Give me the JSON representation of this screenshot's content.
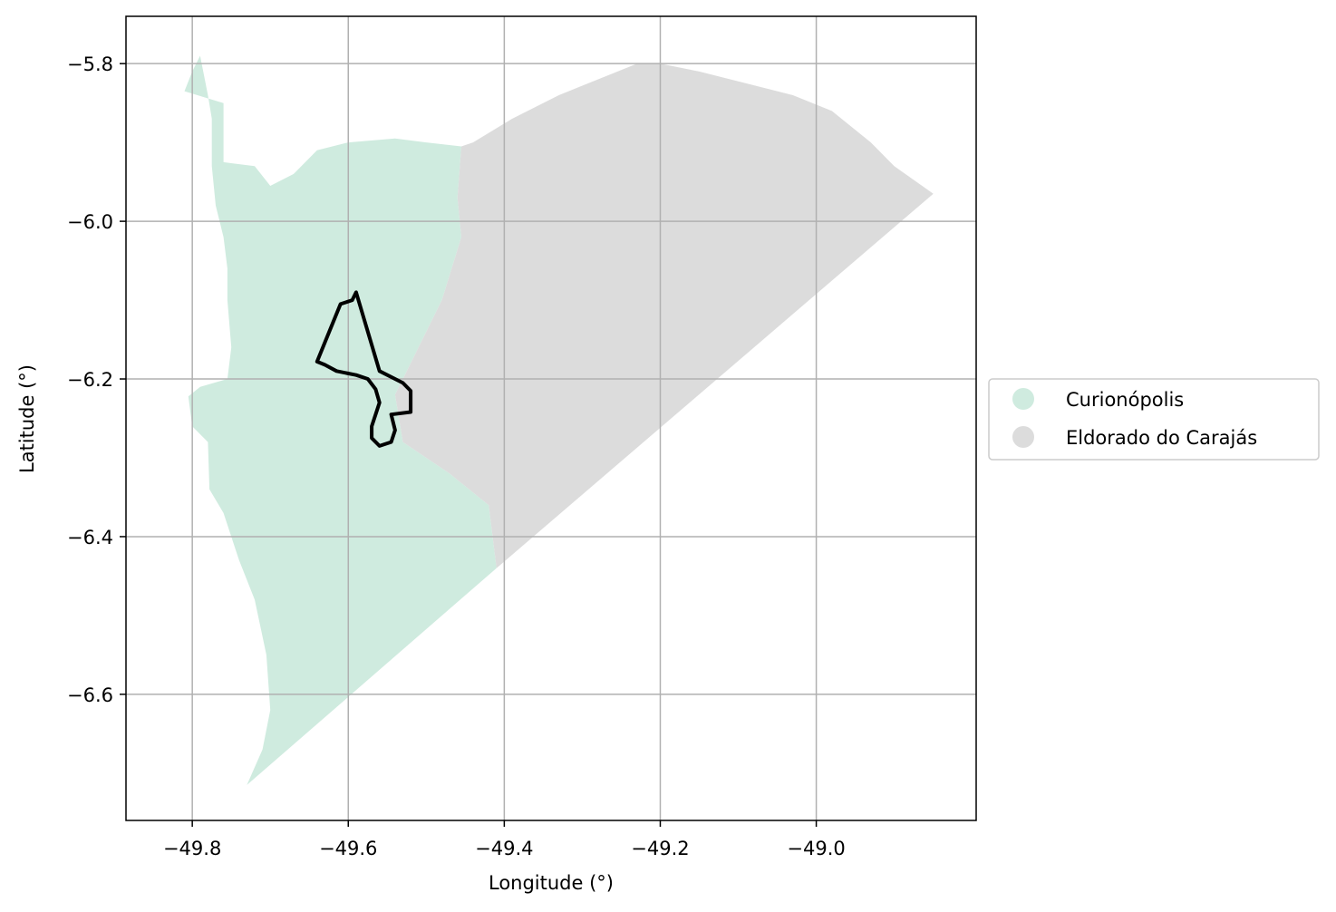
{
  "map": {
    "xlabel": "Longitude (°)",
    "ylabel": "Latitude (°)",
    "xlim": [
      -49.885,
      -48.795
    ],
    "ylim": [
      -6.76,
      -5.74
    ],
    "xticks": [
      {
        "value": -49.8,
        "label": "−49.8"
      },
      {
        "value": -49.6,
        "label": "−49.6"
      },
      {
        "value": -49.4,
        "label": "−49.4"
      },
      {
        "value": -49.2,
        "label": "−49.2"
      },
      {
        "value": -49.0,
        "label": "−49.0"
      }
    ],
    "yticks": [
      {
        "value": -5.8,
        "label": "−5.8"
      },
      {
        "value": -6.0,
        "label": "−6.0"
      },
      {
        "value": -6.2,
        "label": "−6.2"
      },
      {
        "value": -6.4,
        "label": "−6.4"
      },
      {
        "value": -6.6,
        "label": "−6.6"
      }
    ],
    "grid": true,
    "legend_position": "right-center",
    "regions": [
      {
        "name": "Curionópolis",
        "color": "#cfebdf",
        "coords": [
          [
            -49.84,
            -5.826
          ],
          [
            -49.81,
            -5.835
          ],
          [
            -49.8,
            -5.81
          ],
          [
            -49.79,
            -5.79
          ],
          [
            -49.78,
            -5.84
          ],
          [
            -49.775,
            -5.87
          ],
          [
            -49.775,
            -5.93
          ],
          [
            -49.77,
            -5.98
          ],
          [
            -49.76,
            -6.02
          ],
          [
            -49.755,
            -6.06
          ],
          [
            -49.755,
            -6.1
          ],
          [
            -49.75,
            -6.16
          ],
          [
            -49.755,
            -6.2
          ],
          [
            -49.79,
            -6.21
          ],
          [
            -49.805,
            -6.222
          ],
          [
            -49.8,
            -6.26
          ],
          [
            -49.78,
            -6.28
          ],
          [
            -49.778,
            -6.34
          ],
          [
            -49.76,
            -6.37
          ],
          [
            -49.74,
            -6.43
          ],
          [
            -49.72,
            -6.48
          ],
          [
            -49.705,
            -6.55
          ],
          [
            -49.7,
            -6.62
          ],
          [
            -49.71,
            -6.67
          ],
          [
            -49.73,
            -6.715
          ],
          [
            -49.41,
            -6.44
          ],
          [
            -49.42,
            -6.36
          ],
          [
            -49.47,
            -6.32
          ],
          [
            -49.5,
            -6.3
          ],
          [
            -49.53,
            -6.28
          ],
          [
            -49.54,
            -6.22
          ],
          [
            -49.48,
            -6.1
          ],
          [
            -49.455,
            -6.02
          ],
          [
            -49.46,
            -5.97
          ],
          [
            -49.455,
            -5.905
          ],
          [
            -49.5,
            -5.9
          ],
          [
            -49.54,
            -5.895
          ],
          [
            -49.6,
            -5.9
          ],
          [
            -49.64,
            -5.91
          ],
          [
            -49.67,
            -5.94
          ],
          [
            -49.7,
            -5.955
          ],
          [
            -49.72,
            -5.93
          ],
          [
            -49.76,
            -5.925
          ],
          [
            -49.76,
            -5.85
          ],
          [
            -49.8,
            -5.838
          ],
          [
            -49.84,
            -5.826
          ]
        ]
      },
      {
        "name": "Eldorado do Carajás",
        "color": "#dcdcdc",
        "coords": [
          [
            -49.455,
            -5.905
          ],
          [
            -49.44,
            -5.9
          ],
          [
            -49.39,
            -5.87
          ],
          [
            -49.33,
            -5.84
          ],
          [
            -49.28,
            -5.82
          ],
          [
            -49.23,
            -5.8
          ],
          [
            -49.2,
            -5.8
          ],
          [
            -49.15,
            -5.81
          ],
          [
            -49.07,
            -5.83
          ],
          [
            -49.03,
            -5.84
          ],
          [
            -48.98,
            -5.86
          ],
          [
            -48.93,
            -5.9
          ],
          [
            -48.9,
            -5.93
          ],
          [
            -48.85,
            -5.965
          ],
          [
            -49.41,
            -6.44
          ],
          [
            -49.42,
            -6.36
          ],
          [
            -49.47,
            -6.32
          ],
          [
            -49.5,
            -6.3
          ],
          [
            -49.53,
            -6.28
          ],
          [
            -49.54,
            -6.22
          ],
          [
            -49.48,
            -6.1
          ],
          [
            -49.455,
            -6.02
          ],
          [
            -49.46,
            -5.97
          ],
          [
            -49.455,
            -5.905
          ]
        ]
      }
    ],
    "outline": {
      "color": "#000000",
      "coords": [
        [
          -49.59,
          -6.09
        ],
        [
          -49.595,
          -6.1
        ],
        [
          -49.61,
          -6.105
        ],
        [
          -49.64,
          -6.178
        ],
        [
          -49.63,
          -6.182
        ],
        [
          -49.615,
          -6.19
        ],
        [
          -49.59,
          -6.195
        ],
        [
          -49.575,
          -6.2
        ],
        [
          -49.565,
          -6.213
        ],
        [
          -49.56,
          -6.23
        ],
        [
          -49.565,
          -6.245
        ],
        [
          -49.57,
          -6.26
        ],
        [
          -49.57,
          -6.275
        ],
        [
          -49.56,
          -6.285
        ],
        [
          -49.545,
          -6.28
        ],
        [
          -49.54,
          -6.265
        ],
        [
          -49.545,
          -6.245
        ],
        [
          -49.52,
          -6.242
        ],
        [
          -49.52,
          -6.215
        ],
        [
          -49.53,
          -6.205
        ],
        [
          -49.56,
          -6.19
        ],
        [
          -49.59,
          -6.09
        ]
      ]
    }
  }
}
